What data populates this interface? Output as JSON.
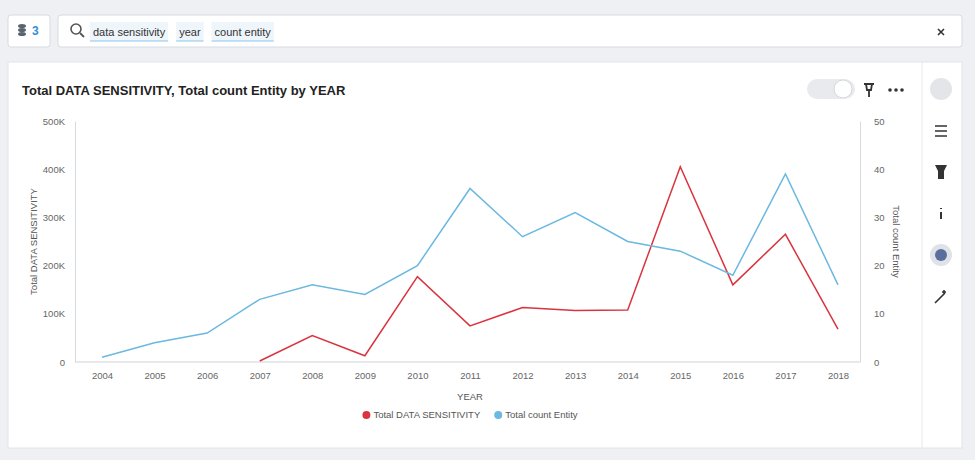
{
  "search_bar": {
    "sources": 3,
    "tokens": [
      "data sensitivity",
      "year",
      "count entity"
    ]
  },
  "chart_data": {
    "type": "line",
    "title": "Total DATA SENSITIVITY, Total count Entity by YEAR",
    "x_label": "YEAR",
    "y_label": "Total DATA SENSITIVITY",
    "y2_label": "Total count Entity",
    "categories": [
      "2004",
      "2005",
      "2006",
      "2007",
      "2008",
      "2009",
      "2010",
      "2011",
      "2012",
      "2013",
      "2014",
      "2015",
      "2016",
      "2017",
      "2018"
    ],
    "series": [
      {
        "name": "Total DATA SENSITIVITY",
        "color": "#d9343f",
        "values": [
          null,
          null,
          null,
          2000,
          55000,
          13000,
          177000,
          75000,
          113000,
          107000,
          108000,
          405000,
          160000,
          265000,
          68000
        ]
      },
      {
        "name": "Total count Entity",
        "color": "#6bb8e0",
        "axis": "y2",
        "values": [
          1,
          4,
          6,
          13,
          16,
          14,
          20,
          36,
          26,
          31,
          25,
          23,
          18,
          39,
          16
        ]
      }
    ],
    "ylim": [
      0,
      500000
    ],
    "yticks": [
      0,
      {
        "value": 100000,
        "label": "100K"
      },
      {
        "value": 200000,
        "label": "200K"
      },
      {
        "value": 300000,
        "label": "300K"
      },
      {
        "value": 400000,
        "label": "400K"
      },
      {
        "value": 500000,
        "label": "500K"
      }
    ],
    "y2lim": [
      0,
      50
    ],
    "y2ticks": [
      0,
      10,
      20,
      30,
      40,
      50
    ],
    "grid": false,
    "legend": "bottom"
  }
}
